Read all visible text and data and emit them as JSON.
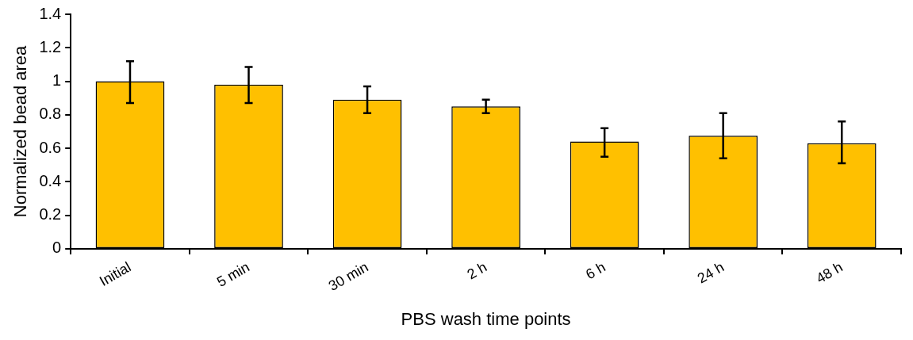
{
  "chart_data": {
    "type": "bar",
    "xlabel": "PBS wash time points",
    "ylabel": "Normalized bead area",
    "categories": [
      "Initial",
      "5 min",
      "30 min",
      "2 h",
      "6 h",
      "24 h",
      "48 h"
    ],
    "values": [
      1.0,
      0.98,
      0.89,
      0.85,
      0.64,
      0.675,
      0.63
    ],
    "errors": [
      [
        0.87,
        1.12
      ],
      [
        0.87,
        1.085
      ],
      [
        0.81,
        0.97
      ],
      [
        0.81,
        0.89
      ],
      [
        0.55,
        0.72
      ],
      [
        0.54,
        0.81
      ],
      [
        0.51,
        0.76
      ]
    ],
    "color": "#ffc000",
    "ylim": [
      0,
      1.4
    ],
    "yticks": [
      0,
      0.2,
      0.4,
      0.6,
      0.8,
      1,
      1.2,
      1.4
    ],
    "grid": false,
    "legend": false
  }
}
